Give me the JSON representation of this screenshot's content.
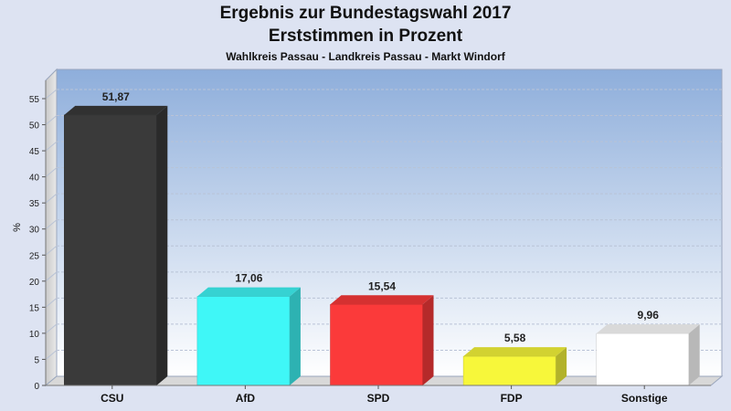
{
  "title_line1": "Ergebnis zur Bundestagswahl 2017",
  "title_line2": "Erststimmen in Prozent",
  "subtitle": "Wahlkreis Passau - Landkreis Passau - Markt Windorf",
  "chart_data": {
    "type": "bar",
    "title": "Ergebnis zur Bundestagswahl 2017 Erststimmen in Prozent",
    "subtitle": "Wahlkreis Passau - Landkreis Passau - Markt Windorf",
    "xlabel": "",
    "ylabel": "%",
    "ylim": [
      0,
      55
    ],
    "yticks": [
      0,
      5,
      10,
      15,
      20,
      25,
      30,
      35,
      40,
      45,
      50,
      55
    ],
    "categories": [
      "CSU",
      "AfD",
      "SPD",
      "FDP",
      "Sonstige"
    ],
    "values": [
      51.87,
      17.06,
      15.54,
      5.58,
      9.96
    ],
    "value_labels": [
      "51,87",
      "17,06",
      "15,54",
      "5,58",
      "9,96"
    ],
    "colors": [
      "#3a3a3a",
      "#3ff7f7",
      "#fb3a3a",
      "#f7f73a",
      "#ffffff"
    ],
    "grid": true,
    "legend": "none"
  }
}
